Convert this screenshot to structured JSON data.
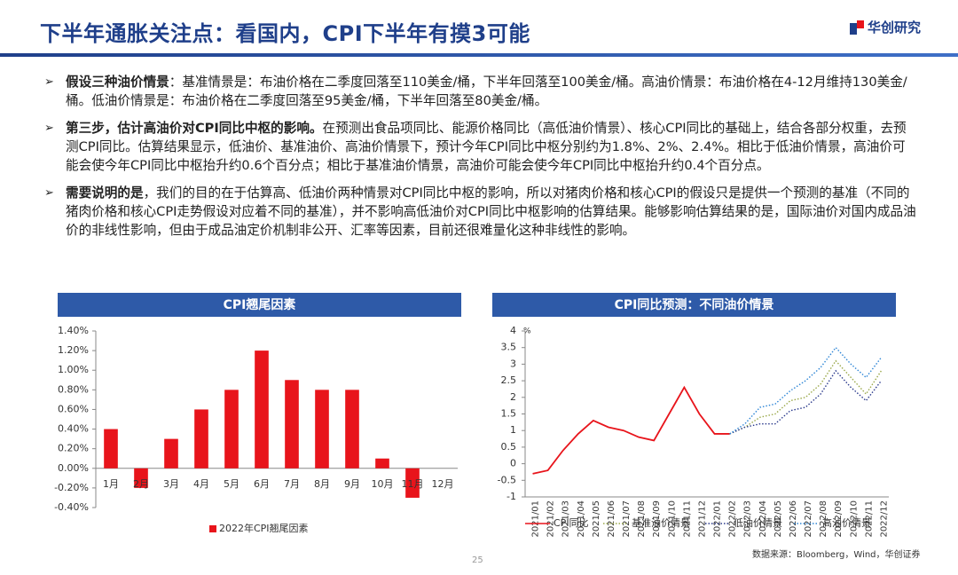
{
  "header": {
    "title": "下半年通胀关注点：看国内，CPI下半年有摸3可能",
    "logo": "华创研究"
  },
  "bullets": [
    {
      "lead": "假设三种油价情景",
      "text": "：基准情景是：布油价格在二季度回落至110美金/桶，下半年回落至100美金/桶。高油价情景：布油价格在4-12月维持130美金/桶。低油价情景是：布油价格在二季度回落至95美金/桶，下半年回落至80美金/桶。"
    },
    {
      "lead": "第三步，估计高油价对CPI同比中枢的影响。",
      "text": "在预测出食品项同比、能源价格同比（高低油价情景）、核心CPI同比的基础上，结合各部分权重，去预测CPI同比。估算结果显示，低油价、基准油价、高油价情景下，预计今年CPI同比中枢分别约为1.8%、2%、2.4%。相比于低油价情景，高油价可能会使今年CPI同比中枢抬升约0.6个百分点；相比于基准油价情景，高油价可能会使今年CPI同比中枢抬升约0.4个百分点。"
    },
    {
      "lead": "需要说明的是",
      "text": "，我们的目的在于估算高、低油价两种情景对CPI同比中枢的影响，所以对猪肉价格和核心CPI的假设只是提供一个预测的基准（不同的猪肉价格和核心CPI走势假设对应着不同的基准），并不影响高低油价对CPI同比中枢影响的估算结果。能够影响估算结果的是，国际油价对国内成品油价的非线性影响，但由于成品油定价机制非公开、汇率等因素，目前还很难量化这种非线性的影响。"
    }
  ],
  "chart_data": [
    {
      "type": "bar",
      "title": "CPI翘尾因素",
      "categories": [
        "1月",
        "2月",
        "3月",
        "4月",
        "5月",
        "6月",
        "7月",
        "8月",
        "9月",
        "10月",
        "11月",
        "12月"
      ],
      "series": [
        {
          "name": "2022年CPI翘尾因素",
          "color": "#e8141b",
          "values": [
            0.4,
            -0.2,
            0.3,
            0.6,
            0.8,
            1.2,
            0.9,
            0.8,
            0.8,
            0.1,
            -0.3,
            0
          ]
        }
      ],
      "ylim": [
        -0.4,
        1.4
      ],
      "yticks": [
        {
          "value": -0.4,
          "label": "-0.40%"
        },
        {
          "value": -0.2,
          "label": "-0.20%"
        },
        {
          "value": 0,
          "label": "0.00%"
        },
        {
          "value": 0.2,
          "label": "0.20%"
        },
        {
          "value": 0.4,
          "label": "0.40%"
        },
        {
          "value": 0.6,
          "label": "0.60%"
        },
        {
          "value": 0.8,
          "label": "0.80%"
        },
        {
          "value": 1.0,
          "label": "1.00%"
        },
        {
          "value": 1.2,
          "label": "1.20%"
        },
        {
          "value": 1.4,
          "label": "1.40%"
        }
      ]
    },
    {
      "type": "line",
      "title": "CPI同比预测：不同油价情景",
      "y_label": "%",
      "categories": [
        "2021/01",
        "2021/02",
        "2021/03",
        "2021/04",
        "2021/05",
        "2021/06",
        "2021/07",
        "2021/08",
        "2021/09",
        "2021/10",
        "2021/11",
        "2021/12",
        "2022/01",
        "2022/02",
        "2022/03",
        "2022/04",
        "2022/05",
        "2022/06",
        "2022/07",
        "2022/08",
        "2022/09",
        "2022/10",
        "2022/11",
        "2022/12"
      ],
      "series": [
        {
          "name": "CPI同比",
          "color": "#e8141b",
          "line_style": "solid",
          "values": [
            -0.3,
            -0.2,
            0.4,
            0.9,
            1.3,
            1.1,
            1.0,
            0.8,
            0.7,
            1.5,
            2.3,
            1.5,
            0.9,
            0.9,
            null,
            null,
            null,
            null,
            null,
            null,
            null,
            null,
            null,
            null
          ]
        },
        {
          "name": "基准油价情景",
          "color": "#9aa84a",
          "line_style": "dotted",
          "values": [
            null,
            null,
            null,
            null,
            null,
            null,
            null,
            null,
            null,
            null,
            null,
            null,
            null,
            0.9,
            1.1,
            1.4,
            1.5,
            1.9,
            2.0,
            2.4,
            3.1,
            2.6,
            2.1,
            2.8
          ]
        },
        {
          "name": "低油价情景",
          "color": "#2b3a8c",
          "line_style": "dotted",
          "values": [
            null,
            null,
            null,
            null,
            null,
            null,
            null,
            null,
            null,
            null,
            null,
            null,
            null,
            0.9,
            1.1,
            1.2,
            1.2,
            1.6,
            1.7,
            2.1,
            2.8,
            2.3,
            1.9,
            2.5
          ]
        },
        {
          "name": "高油价情景",
          "color": "#2f86d6",
          "line_style": "dotted",
          "values": [
            null,
            null,
            null,
            null,
            null,
            null,
            null,
            null,
            null,
            null,
            null,
            null,
            null,
            0.9,
            1.2,
            1.7,
            1.8,
            2.2,
            2.5,
            2.9,
            3.5,
            3.0,
            2.6,
            3.2
          ]
        }
      ],
      "ylim": [
        -1,
        4
      ],
      "yticks": [
        -1,
        -0.5,
        0,
        0.5,
        1,
        1.5,
        2,
        2.5,
        3,
        3.5,
        4
      ]
    }
  ],
  "footer": {
    "source": "数据来源：Bloomberg，Wind，华创证券",
    "page": "25"
  }
}
